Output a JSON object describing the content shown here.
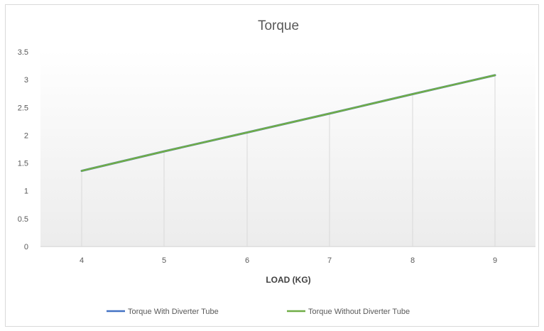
{
  "chart_data": {
    "type": "line",
    "title": "Torque",
    "xlabel": "LOAD (KG)",
    "ylabel": "",
    "x": [
      4,
      5,
      6,
      7,
      8,
      9
    ],
    "ylim": [
      0,
      3.5
    ],
    "y_ticks": [
      "0",
      "0.5",
      "1",
      "1.5",
      "2",
      "2.5",
      "3",
      "3.5"
    ],
    "x_ticks": [
      "4",
      "5",
      "6",
      "7",
      "8",
      "9"
    ],
    "grid": "vertical",
    "legend_position": "bottom",
    "series": [
      {
        "name": "Torque  With Diverter Tube",
        "values": [
          1.36,
          1.71,
          2.05,
          2.39,
          2.74,
          3.08
        ],
        "color": "#4472c4"
      },
      {
        "name": "Torque  Without Diverter Tube",
        "values": [
          1.36,
          1.71,
          2.05,
          2.39,
          2.74,
          3.08
        ],
        "color": "#70ad47"
      }
    ]
  }
}
